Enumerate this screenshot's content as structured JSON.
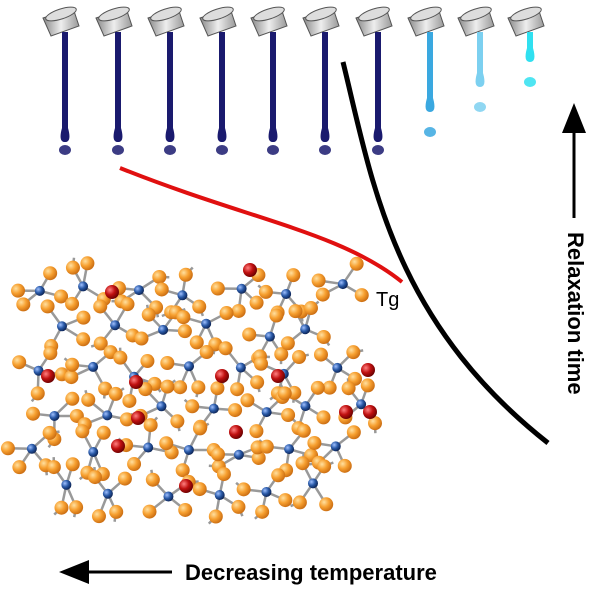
{
  "labels": {
    "tg": "Tg",
    "y_axis": "Relaxation time",
    "x_axis": "Decreasing temperature"
  }
}
